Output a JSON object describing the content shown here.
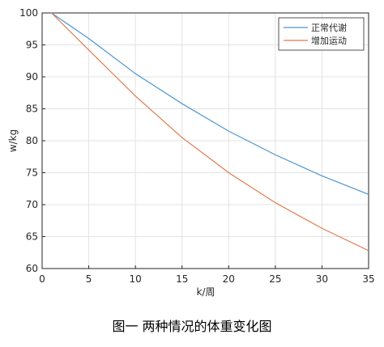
{
  "chart_data": {
    "type": "line",
    "x_label": "k/周",
    "y_label": "w/kg",
    "caption": "图一 两种情况的体重变化图",
    "x": [
      1,
      5,
      10,
      15,
      20,
      25,
      30,
      35
    ],
    "series": [
      {
        "name": "正常代谢",
        "color": "#4d95cf",
        "values": [
          100,
          96,
          90.5,
          85.8,
          81.5,
          77.8,
          74.5,
          71.6
        ]
      },
      {
        "name": "增加运动",
        "color": "#e07b4f",
        "values": [
          100,
          94.2,
          87,
          80.5,
          75,
          70.3,
          66.3,
          62.8
        ]
      }
    ],
    "xlim": [
      0,
      35
    ],
    "xticks": [
      0,
      5,
      10,
      15,
      20,
      25,
      30,
      35
    ],
    "ylim": [
      60,
      100
    ],
    "yticks": [
      60,
      65,
      70,
      75,
      80,
      85,
      90,
      95,
      100
    ],
    "grid": true,
    "legend": "top-right"
  }
}
